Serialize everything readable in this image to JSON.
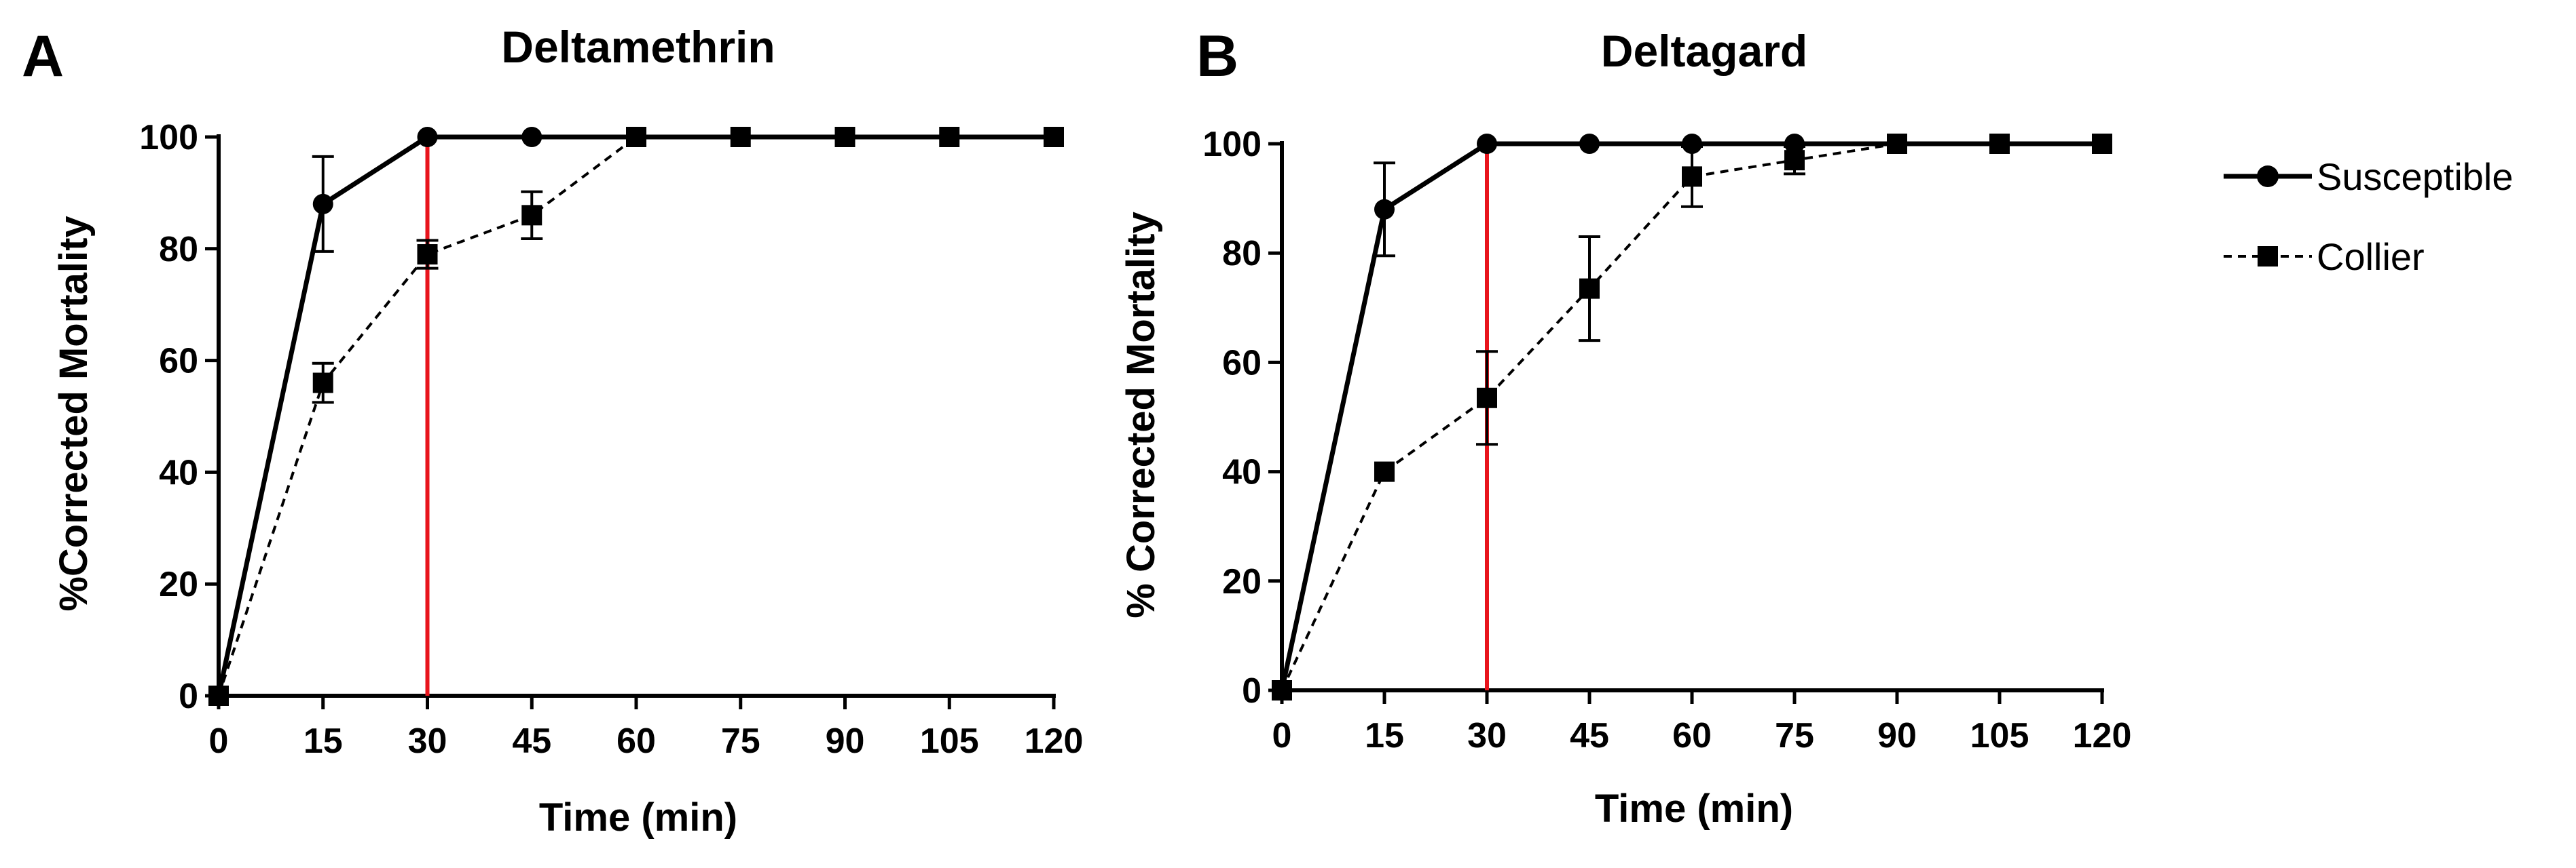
{
  "chart_data": [
    {
      "type": "line",
      "panel_letter": "A",
      "title": "Deltamethrin",
      "xlabel": "Time (min)",
      "ylabel": "%Corrected Mortality",
      "x": [
        0,
        15,
        30,
        45,
        60,
        75,
        90,
        105,
        120
      ],
      "x_ticks": [
        "0",
        "15",
        "30",
        "45",
        "60",
        "75",
        "90",
        "105",
        "120"
      ],
      "y_ticks": [
        "0",
        "20",
        "40",
        "60",
        "80",
        "100"
      ],
      "xlim": [
        0,
        120
      ],
      "ylim": [
        0,
        100
      ],
      "vertical_marker": {
        "x": 30,
        "color": "#e8141c"
      },
      "series": [
        {
          "name": "Susceptible",
          "marker": "circle",
          "line": "solid",
          "x": [
            0,
            15,
            30,
            45,
            60,
            75,
            90,
            105,
            120
          ],
          "values": [
            0,
            88,
            100,
            100,
            100,
            100,
            100,
            100,
            100
          ],
          "error": [
            0,
            8.5,
            0,
            0,
            0,
            0,
            0,
            0,
            0
          ]
        },
        {
          "name": "Collier",
          "marker": "square",
          "line": "dashed",
          "x": [
            0,
            15,
            30,
            45,
            60,
            75,
            90,
            105,
            120
          ],
          "values": [
            0,
            56,
            79,
            86,
            100,
            100,
            100,
            100,
            100
          ],
          "error": [
            0,
            3.5,
            2.5,
            4.2,
            0,
            0,
            0,
            0,
            0
          ]
        }
      ]
    },
    {
      "type": "line",
      "panel_letter": "B",
      "title": "Deltagard",
      "xlabel": "Time (min)",
      "ylabel": "% Corrected Mortality",
      "x": [
        0,
        15,
        30,
        45,
        60,
        75,
        90,
        105,
        120
      ],
      "x_ticks": [
        "0",
        "15",
        "30",
        "45",
        "60",
        "75",
        "90",
        "105",
        "120"
      ],
      "y_ticks": [
        "0",
        "20",
        "40",
        "60",
        "80",
        "100"
      ],
      "xlim": [
        0,
        120
      ],
      "ylim": [
        0,
        100
      ],
      "vertical_marker": {
        "x": 30,
        "color": "#e8141c"
      },
      "series": [
        {
          "name": "Susceptible",
          "marker": "circle",
          "line": "solid",
          "x": [
            0,
            15,
            30,
            45,
            60,
            75,
            90,
            105,
            120
          ],
          "values": [
            0,
            88,
            100,
            100,
            100,
            100,
            100,
            100,
            100
          ],
          "error": [
            0,
            8.5,
            0,
            0,
            0,
            0,
            0,
            0,
            0
          ]
        },
        {
          "name": "Collier",
          "marker": "square",
          "line": "dashed",
          "x": [
            0,
            15,
            30,
            45,
            60,
            75,
            90,
            105,
            120
          ],
          "values": [
            0,
            40,
            53.5,
            73.5,
            94,
            97,
            100,
            100,
            100
          ],
          "error": [
            0,
            0,
            8.5,
            9.5,
            5.5,
            2.5,
            0,
            0,
            0
          ]
        }
      ]
    }
  ],
  "legend": {
    "position": "right",
    "entries": [
      {
        "label": "Susceptible",
        "marker": "circle",
        "line": "solid"
      },
      {
        "label": "Collier",
        "marker": "square",
        "line": "dashed"
      }
    ]
  }
}
